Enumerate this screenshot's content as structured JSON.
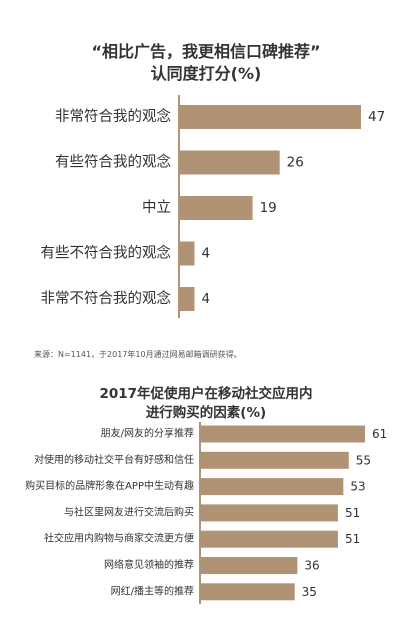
{
  "colors": {
    "bar": "#b09374",
    "axis": "#b09374",
    "text": "#333333"
  },
  "chart_data": [
    {
      "type": "bar",
      "orientation": "horizontal",
      "title_lines": [
        "“相比广告，我更相信口碑推荐”",
        "认同度打分(%)"
      ],
      "categories": [
        "非常符合我的观念",
        "有些符合我的观念",
        "中立",
        "有些不符合我的观念",
        "非常不符合我的观念"
      ],
      "values": [
        47,
        26,
        19,
        4,
        4
      ],
      "xlim": [
        0,
        47
      ],
      "grid": false,
      "legend": "none"
    },
    {
      "type": "bar",
      "orientation": "horizontal",
      "title_lines": [
        "2017年促使用户在移动社交应用内",
        "进行购买的因素(%)"
      ],
      "categories": [
        "朋友/网友的分享推荐",
        "对使用的移动社交平台有好感和信任",
        "购买目标的品牌形象在APP中生动有趣",
        "与社区里网友进行交流后购买",
        "社交应用内购物与商家交流更方便",
        "网络意见领袖的推荐",
        "网红/播主等的推荐"
      ],
      "values": [
        61,
        55,
        53,
        51,
        51,
        36,
        35
      ],
      "xlim": [
        0,
        61
      ],
      "grid": false,
      "legend": "none"
    }
  ],
  "source_note": "来源：N=1141，于2017年10月通过网易邮箱调研获得。"
}
